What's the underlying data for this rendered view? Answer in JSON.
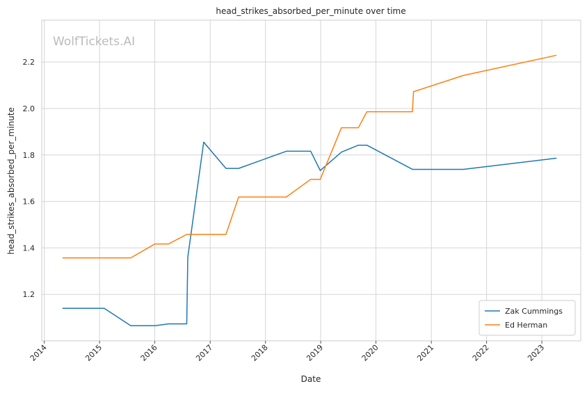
{
  "chart_data": {
    "type": "line",
    "title": "head_strikes_absorbed_per_minute over time",
    "xlabel": "Date",
    "ylabel": "head_strikes_absorbed_per_minute",
    "watermark": "WolfTickets.AI",
    "x_range": [
      "2013-12-15",
      "2023-09-15"
    ],
    "ylim": [
      1.0,
      2.38
    ],
    "x_ticks": [
      {
        "label": "2014",
        "date": "2014-01-01"
      },
      {
        "label": "2015",
        "date": "2015-01-01"
      },
      {
        "label": "2016",
        "date": "2016-01-01"
      },
      {
        "label": "2017",
        "date": "2017-01-01"
      },
      {
        "label": "2018",
        "date": "2018-01-01"
      },
      {
        "label": "2019",
        "date": "2019-01-01"
      },
      {
        "label": "2020",
        "date": "2020-01-01"
      },
      {
        "label": "2021",
        "date": "2021-01-01"
      },
      {
        "label": "2022",
        "date": "2022-01-01"
      },
      {
        "label": "2023",
        "date": "2023-01-01"
      }
    ],
    "y_ticks": [
      {
        "label": "1.2",
        "value": 1.2
      },
      {
        "label": "1.4",
        "value": 1.4
      },
      {
        "label": "1.6",
        "value": 1.6
      },
      {
        "label": "1.8",
        "value": 1.8
      },
      {
        "label": "2.0",
        "value": 2.0
      },
      {
        "label": "2.2",
        "value": 2.2
      }
    ],
    "grid": true,
    "legend_position": "bottom-right",
    "series": [
      {
        "name": "Zak Cummings",
        "color": "#1f77b4",
        "points": [
          {
            "x": "2014-05-01",
            "y": 1.14
          },
          {
            "x": "2015-02-01",
            "y": 1.14
          },
          {
            "x": "2015-07-26",
            "y": 1.065
          },
          {
            "x": "2016-01-02",
            "y": 1.065
          },
          {
            "x": "2016-04-01",
            "y": 1.073
          },
          {
            "x": "2016-07-30",
            "y": 1.073
          },
          {
            "x": "2016-08-06",
            "y": 1.36
          },
          {
            "x": "2016-11-19",
            "y": 1.855
          },
          {
            "x": "2017-04-15",
            "y": 1.742
          },
          {
            "x": "2017-07-08",
            "y": 1.742
          },
          {
            "x": "2018-05-19",
            "y": 1.816
          },
          {
            "x": "2018-10-27",
            "y": 1.816
          },
          {
            "x": "2018-12-29",
            "y": 1.733
          },
          {
            "x": "2019-05-18",
            "y": 1.812
          },
          {
            "x": "2019-09-07",
            "y": 1.842
          },
          {
            "x": "2019-11-02",
            "y": 1.842
          },
          {
            "x": "2020-08-29",
            "y": 1.738
          },
          {
            "x": "2021-07-31",
            "y": 1.738
          },
          {
            "x": "2023-04-08",
            "y": 1.786
          }
        ]
      },
      {
        "name": "Ed Herman",
        "color": "#ff7f0e",
        "points": [
          {
            "x": "2014-05-01",
            "y": 1.357
          },
          {
            "x": "2015-07-26",
            "y": 1.357
          },
          {
            "x": "2016-01-02",
            "y": 1.417
          },
          {
            "x": "2016-04-01",
            "y": 1.417
          },
          {
            "x": "2016-07-30",
            "y": 1.458
          },
          {
            "x": "2017-04-15",
            "y": 1.458
          },
          {
            "x": "2017-07-08",
            "y": 1.619
          },
          {
            "x": "2018-05-19",
            "y": 1.619
          },
          {
            "x": "2018-10-27",
            "y": 1.695
          },
          {
            "x": "2018-12-29",
            "y": 1.695
          },
          {
            "x": "2019-05-18",
            "y": 1.917
          },
          {
            "x": "2019-09-07",
            "y": 1.917
          },
          {
            "x": "2019-11-02",
            "y": 1.986
          },
          {
            "x": "2020-08-29",
            "y": 1.986
          },
          {
            "x": "2020-09-05",
            "y": 2.072
          },
          {
            "x": "2021-07-31",
            "y": 2.142
          },
          {
            "x": "2023-04-08",
            "y": 2.229
          }
        ]
      }
    ]
  }
}
